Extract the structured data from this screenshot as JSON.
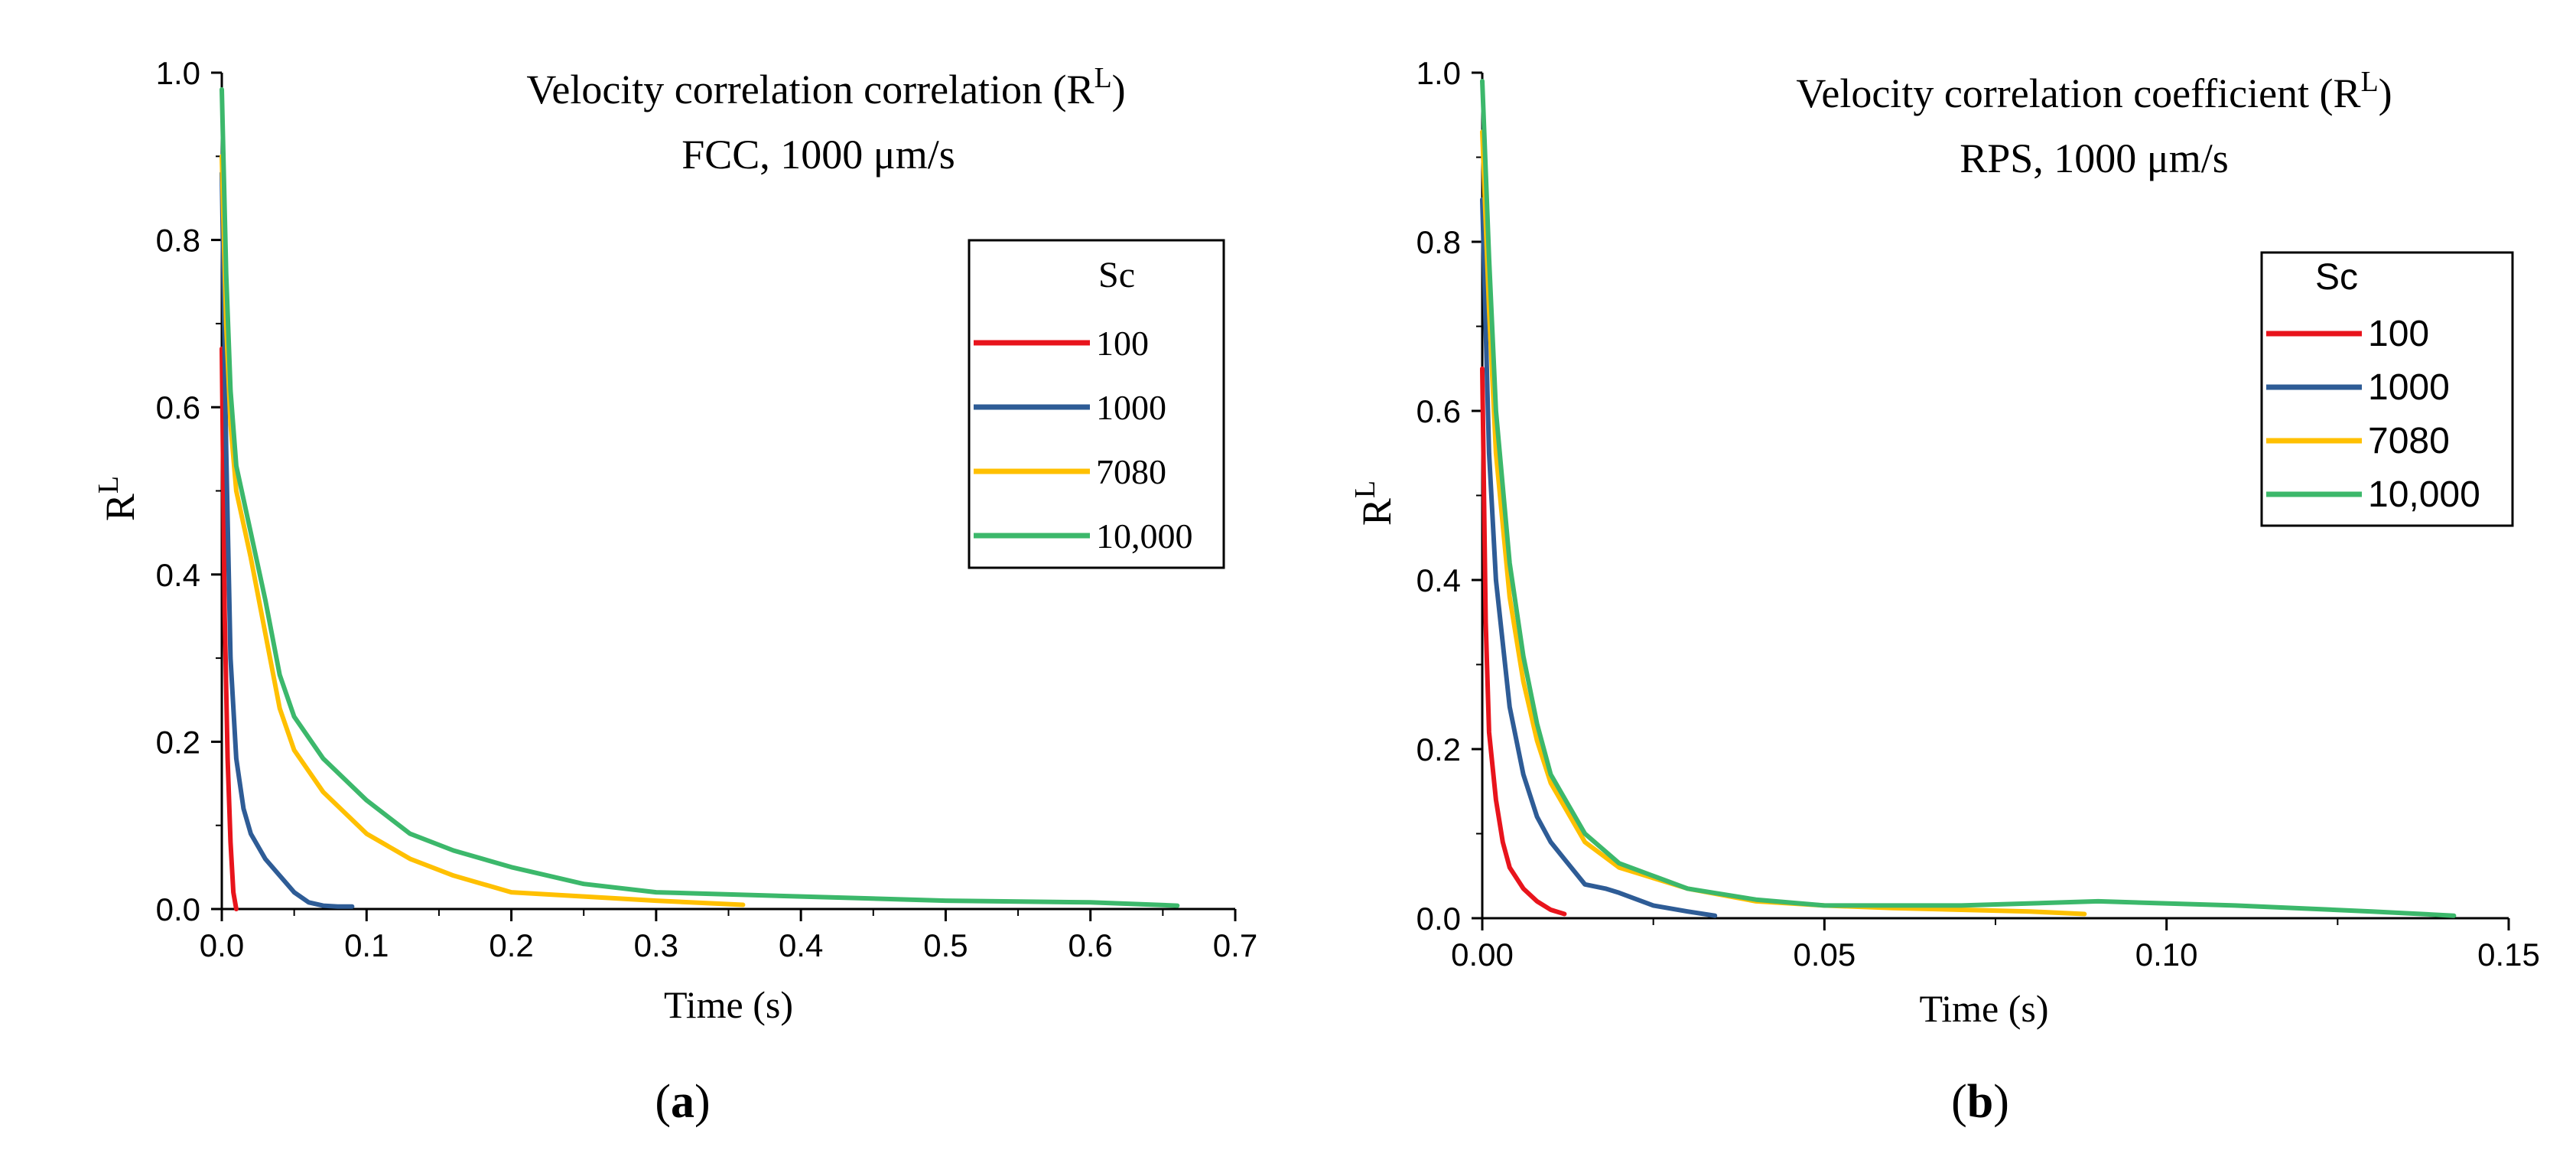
{
  "chart_data": [
    {
      "type": "line",
      "panel_label": "(a)",
      "panel_label_parts": [
        "(",
        "a",
        ")"
      ],
      "title": "Velocity correlation correlation (R^L)",
      "title_parts": [
        "Velocity correlation correlation (R",
        "L",
        ")"
      ],
      "subtitle": "FCC, 1000 μm/s",
      "xlabel": "Time (s)",
      "ylabel": "R^L",
      "ylabel_parts": [
        "R",
        "L"
      ],
      "xlim": [
        0,
        0.7
      ],
      "ylim": [
        0,
        1.0
      ],
      "xticks": [
        0,
        0.1,
        0.2,
        0.3,
        0.4,
        0.5,
        0.6,
        0.7
      ],
      "xtick_labels": [
        "0.0",
        "0.1",
        "0.2",
        "0.3",
        "0.4",
        "0.5",
        "0.6",
        "0.7"
      ],
      "yticks": [
        0,
        0.2,
        0.4,
        0.6,
        0.8,
        1.0
      ],
      "ytick_labels": [
        "0.0",
        "0.2",
        "0.4",
        "0.6",
        "0.8",
        "1.0"
      ],
      "grid": false,
      "legend_title": "Sc",
      "legend_position": "top-right",
      "series": [
        {
          "name": "100",
          "color": "#e8141c",
          "x": [
            0,
            0.002,
            0.004,
            0.006,
            0.008,
            0.01
          ],
          "y": [
            0.67,
            0.35,
            0.18,
            0.08,
            0.02,
            0.0
          ]
        },
        {
          "name": "1000",
          "color": "#2e5c96",
          "x": [
            0,
            0.003,
            0.006,
            0.01,
            0.015,
            0.02,
            0.03,
            0.04,
            0.05,
            0.06,
            0.07,
            0.08,
            0.09
          ],
          "y": [
            0.88,
            0.55,
            0.3,
            0.18,
            0.12,
            0.09,
            0.06,
            0.04,
            0.02,
            0.008,
            0.004,
            0.003,
            0.003
          ]
        },
        {
          "name": "7080",
          "color": "#ffc000",
          "x": [
            0,
            0.003,
            0.006,
            0.01,
            0.02,
            0.03,
            0.04,
            0.05,
            0.07,
            0.1,
            0.13,
            0.16,
            0.2,
            0.25,
            0.3,
            0.36
          ],
          "y": [
            0.9,
            0.7,
            0.58,
            0.5,
            0.42,
            0.33,
            0.24,
            0.19,
            0.14,
            0.09,
            0.06,
            0.04,
            0.02,
            0.015,
            0.01,
            0.005
          ]
        },
        {
          "name": "10,000",
          "color": "#3cb86b",
          "x": [
            0,
            0.003,
            0.006,
            0.01,
            0.02,
            0.03,
            0.04,
            0.05,
            0.07,
            0.1,
            0.13,
            0.16,
            0.2,
            0.25,
            0.3,
            0.4,
            0.5,
            0.6,
            0.66
          ],
          "y": [
            0.98,
            0.76,
            0.62,
            0.53,
            0.45,
            0.37,
            0.28,
            0.23,
            0.18,
            0.13,
            0.09,
            0.07,
            0.05,
            0.03,
            0.02,
            0.015,
            0.01,
            0.008,
            0.004
          ]
        }
      ]
    },
    {
      "type": "line",
      "panel_label": "(b)",
      "panel_label_parts": [
        "(",
        "b",
        ")"
      ],
      "title": "Velocity correlation coefficient (R^L)",
      "title_parts": [
        "Velocity correlation coefficient (R",
        "L",
        ")"
      ],
      "subtitle": "RPS, 1000 μm/s",
      "xlabel": "Time (s)",
      "ylabel": "R^L",
      "ylabel_parts": [
        "R",
        "L"
      ],
      "xlim": [
        0,
        0.15
      ],
      "ylim": [
        0,
        1.0
      ],
      "xticks": [
        0,
        0.05,
        0.1,
        0.15
      ],
      "xtick_labels": [
        "0.00",
        "0.05",
        "0.10",
        "0.15"
      ],
      "yticks": [
        0,
        0.2,
        0.4,
        0.6,
        0.8,
        1.0
      ],
      "ytick_labels": [
        "0.0",
        "0.2",
        "0.4",
        "0.6",
        "0.8",
        "1.0"
      ],
      "grid": false,
      "legend_title": "Sc",
      "legend_position": "top-right",
      "series": [
        {
          "name": "100",
          "color": "#e8141c",
          "x": [
            0,
            0.0005,
            0.001,
            0.002,
            0.003,
            0.004,
            0.006,
            0.008,
            0.01,
            0.012
          ],
          "y": [
            0.65,
            0.35,
            0.22,
            0.14,
            0.09,
            0.06,
            0.035,
            0.02,
            0.01,
            0.005
          ]
        },
        {
          "name": "1000",
          "color": "#2e5c96",
          "x": [
            0,
            0.001,
            0.002,
            0.004,
            0.006,
            0.008,
            0.01,
            0.012,
            0.015,
            0.018,
            0.02,
            0.025,
            0.03,
            0.034
          ],
          "y": [
            0.85,
            0.55,
            0.4,
            0.25,
            0.17,
            0.12,
            0.09,
            0.07,
            0.04,
            0.035,
            0.03,
            0.015,
            0.008,
            0.003
          ]
        },
        {
          "name": "7080",
          "color": "#ffc000",
          "x": [
            0,
            0.001,
            0.002,
            0.004,
            0.006,
            0.008,
            0.01,
            0.015,
            0.02,
            0.03,
            0.04,
            0.05,
            0.06,
            0.07,
            0.08,
            0.088
          ],
          "y": [
            0.93,
            0.72,
            0.55,
            0.38,
            0.28,
            0.21,
            0.16,
            0.09,
            0.06,
            0.035,
            0.02,
            0.015,
            0.012,
            0.01,
            0.008,
            0.005
          ]
        },
        {
          "name": "10,000",
          "color": "#3cb86b",
          "x": [
            0,
            0.001,
            0.002,
            0.004,
            0.006,
            0.008,
            0.01,
            0.015,
            0.02,
            0.03,
            0.04,
            0.05,
            0.07,
            0.09,
            0.11,
            0.13,
            0.142
          ],
          "y": [
            0.99,
            0.78,
            0.6,
            0.42,
            0.31,
            0.23,
            0.17,
            0.1,
            0.065,
            0.035,
            0.022,
            0.015,
            0.015,
            0.02,
            0.015,
            0.008,
            0.003
          ]
        }
      ]
    }
  ]
}
